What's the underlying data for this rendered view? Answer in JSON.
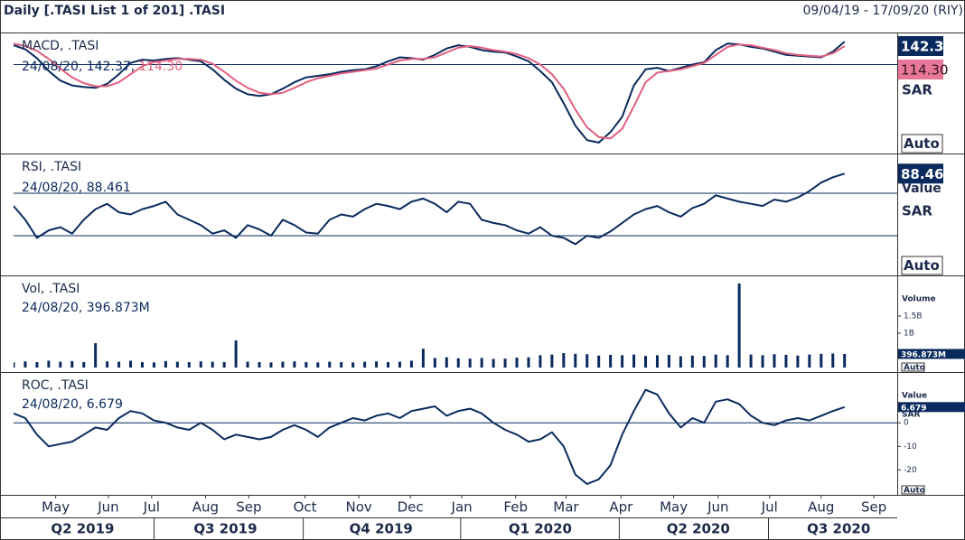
{
  "chart_data": {
    "title": "Daily [.TASI List 1 of 201] .TASI",
    "range": "09/04/19 - 17/09/20 (RIY)",
    "x_axis": {
      "xlim": [
        0,
        75.5
      ],
      "x": [
        0,
        1,
        2,
        3,
        4,
        5,
        6,
        7,
        8,
        9,
        10,
        11,
        12,
        13,
        14,
        15,
        16,
        17,
        18,
        19,
        20,
        21,
        22,
        23,
        24,
        25,
        26,
        27,
        28,
        29,
        30,
        31,
        32,
        33,
        34,
        35,
        36,
        37,
        38,
        39,
        40,
        41,
        42,
        43,
        44,
        45,
        46,
        47,
        48,
        49,
        50,
        51,
        52,
        53,
        54,
        55,
        56,
        57,
        58,
        59,
        60,
        61,
        62,
        63,
        64,
        65,
        66,
        67,
        68,
        69,
        70,
        71
      ],
      "xticks": [
        {
          "value": 3.6,
          "label": "May"
        },
        {
          "value": 8.1,
          "label": "Jun"
        },
        {
          "value": 11.8,
          "label": "Jul"
        },
        {
          "value": 16.4,
          "label": "Aug"
        },
        {
          "value": 20.1,
          "label": "Sep"
        },
        {
          "value": 24.9,
          "label": "Oct"
        },
        {
          "value": 29.5,
          "label": "Nov"
        },
        {
          "value": 33.9,
          "label": "Dec"
        },
        {
          "value": 38.3,
          "label": "Jan"
        },
        {
          "value": 42.9,
          "label": "Feb"
        },
        {
          "value": 47.2,
          "label": "Mar"
        },
        {
          "value": 51.9,
          "label": "Apr"
        },
        {
          "value": 56.4,
          "label": "May"
        },
        {
          "value": 60.2,
          "label": "Jun"
        },
        {
          "value": 64.6,
          "label": "Jul"
        },
        {
          "value": 69.0,
          "label": "Aug"
        },
        {
          "value": 73.5,
          "label": "Sep"
        }
      ],
      "quarters": [
        {
          "value": 5.9,
          "label": "Q2 2019"
        },
        {
          "value": 18.1,
          "label": "Q3 2019"
        },
        {
          "value": 31.4,
          "label": "Q4 2019"
        },
        {
          "value": 45.0,
          "label": "Q1 2020"
        },
        {
          "value": 58.5,
          "label": "Q2 2020"
        },
        {
          "value": 70.5,
          "label": "Q3 2020"
        }
      ]
    },
    "panels": [
      {
        "type": "line",
        "name": "MACD, .TASI",
        "legend": [
          "24/08/20, 142.37,",
          "114.30"
        ],
        "last_labels": [
          "142.37",
          "114.30"
        ],
        "unit": "SAR",
        "scale_mode": "Auto",
        "ylim": [
          -553,
          188
        ],
        "levels": [
          0
        ],
        "series": [
          {
            "name": "MACD",
            "color": "#0a2a5e",
            "values": [
              120,
              95,
              40,
              -40,
              -100,
              -130,
              -140,
              -145,
              -120,
              -60,
              10,
              30,
              25,
              35,
              40,
              30,
              20,
              -30,
              -95,
              -150,
              -185,
              -195,
              -185,
              -150,
              -110,
              -80,
              -70,
              -60,
              -45,
              -35,
              -30,
              -10,
              20,
              45,
              40,
              30,
              60,
              100,
              120,
              110,
              90,
              80,
              75,
              50,
              20,
              -40,
              -110,
              -240,
              -380,
              -470,
              -485,
              -420,
              -325,
              -130,
              -30,
              -20,
              -40,
              -20,
              0,
              15,
              90,
              130,
              125,
              110,
              100,
              80,
              60,
              55,
              50,
              45,
              80,
              142.37
            ]
          },
          {
            "name": "Signal",
            "color": "#e0607e",
            "values": [
              130,
              115,
              85,
              35,
              -25,
              -80,
              -115,
              -135,
              -135,
              -110,
              -60,
              -10,
              15,
              25,
              35,
              35,
              30,
              5,
              -45,
              -100,
              -145,
              -175,
              -185,
              -175,
              -145,
              -110,
              -85,
              -70,
              -55,
              -45,
              -35,
              -25,
              0,
              25,
              35,
              35,
              45,
              75,
              105,
              115,
              105,
              90,
              80,
              65,
              40,
              0,
              -60,
              -150,
              -280,
              -390,
              -450,
              -460,
              -400,
              -260,
              -110,
              -50,
              -40,
              -30,
              -10,
              10,
              60,
              110,
              125,
              120,
              105,
              90,
              70,
              60,
              55,
              50,
              70,
              114.3
            ]
          }
        ]
      },
      {
        "type": "line",
        "name": "RSI, .TASI",
        "legend": [
          "24/08/20, 88.461"
        ],
        "last_labels": [
          "88.461"
        ],
        "axis_label": "Value",
        "unit": "SAR",
        "scale_mode": "Auto",
        "ylim": [
          -7.4,
          105.7
        ],
        "levels": [
          30,
          70
        ],
        "series": [
          {
            "name": "RSI",
            "color": "#0a2a5e",
            "values": [
              58,
              45,
              28,
              35,
              38,
              32,
              45,
              55,
              60,
              52,
              50,
              55,
              58,
              62,
              50,
              45,
              40,
              32,
              35,
              28,
              40,
              36,
              30,
              45,
              40,
              33,
              32,
              45,
              50,
              48,
              55,
              60,
              58,
              55,
              62,
              65,
              60,
              52,
              62,
              60,
              45,
              42,
              40,
              35,
              32,
              38,
              30,
              28,
              22,
              30,
              28,
              34,
              42,
              50,
              55,
              58,
              52,
              48,
              56,
              60,
              68,
              65,
              62,
              60,
              58,
              64,
              62,
              66,
              72,
              80,
              85,
              88.461
            ]
          }
        ]
      },
      {
        "type": "bar",
        "name": "Vol, .TASI",
        "legend": [
          "24/08/20, 396.873M"
        ],
        "last_labels": [
          "396.873M"
        ],
        "axis_label": "Volume",
        "scale_mode": "Auto",
        "ylim": [
          -130000000,
          2630000000
        ],
        "yticks": [
          {
            "value": 1500000000,
            "label": "1.5B"
          },
          {
            "value": 1000000000,
            "label": "1B"
          }
        ],
        "series": [
          {
            "name": "Volume",
            "color": "#0a2a5e",
            "values": [
              150000000,
              180000000,
              160000000,
              200000000,
              170000000,
              190000000,
              160000000,
              710000000,
              180000000,
              170000000,
              200000000,
              160000000,
              150000000,
              190000000,
              170000000,
              160000000,
              180000000,
              170000000,
              160000000,
              790000000,
              170000000,
              160000000,
              150000000,
              170000000,
              180000000,
              160000000,
              150000000,
              170000000,
              160000000,
              150000000,
              170000000,
              180000000,
              160000000,
              170000000,
              200000000,
              550000000,
              280000000,
              300000000,
              270000000,
              260000000,
              280000000,
              250000000,
              260000000,
              290000000,
              300000000,
              360000000,
              380000000,
              420000000,
              400000000,
              390000000,
              350000000,
              370000000,
              360000000,
              380000000,
              340000000,
              360000000,
              370000000,
              330000000,
              350000000,
              340000000,
              380000000,
              360000000,
              2450000000,
              380000000,
              360000000,
              390000000,
              370000000,
              350000000,
              380000000,
              400000000,
              410000000,
              396873000
            ]
          }
        ]
      },
      {
        "type": "line",
        "name": "ROC, .TASI",
        "legend": [
          "24/08/20, 6.679"
        ],
        "last_labels": [
          "6.679"
        ],
        "axis_label": "Value",
        "unit": "SAR",
        "scale_mode": "Auto",
        "ylim": [
          -30.6,
          20.8
        ],
        "levels": [
          0
        ],
        "yticks": [
          0,
          -10,
          -20
        ],
        "series": [
          {
            "name": "ROC",
            "color": "#0a2a5e",
            "values": [
              4,
              2,
              -5,
              -10,
              -9,
              -8,
              -5,
              -2,
              -3,
              2,
              5,
              4,
              1,
              0,
              -2,
              -3,
              0,
              -3,
              -7,
              -5,
              -6,
              -7,
              -6,
              -3,
              -1,
              -3,
              -6,
              -2,
              0,
              2,
              1,
              3,
              4,
              2,
              5,
              6,
              7,
              3,
              5,
              6,
              4,
              0,
              -3,
              -5,
              -8,
              -7,
              -4,
              -10,
              -22,
              -26,
              -24,
              -18,
              -5,
              5,
              14,
              12,
              4,
              -2,
              2,
              0,
              9,
              10,
              8,
              3,
              0,
              -1,
              1,
              2,
              1,
              3,
              5,
              6.679
            ]
          }
        ]
      }
    ]
  }
}
